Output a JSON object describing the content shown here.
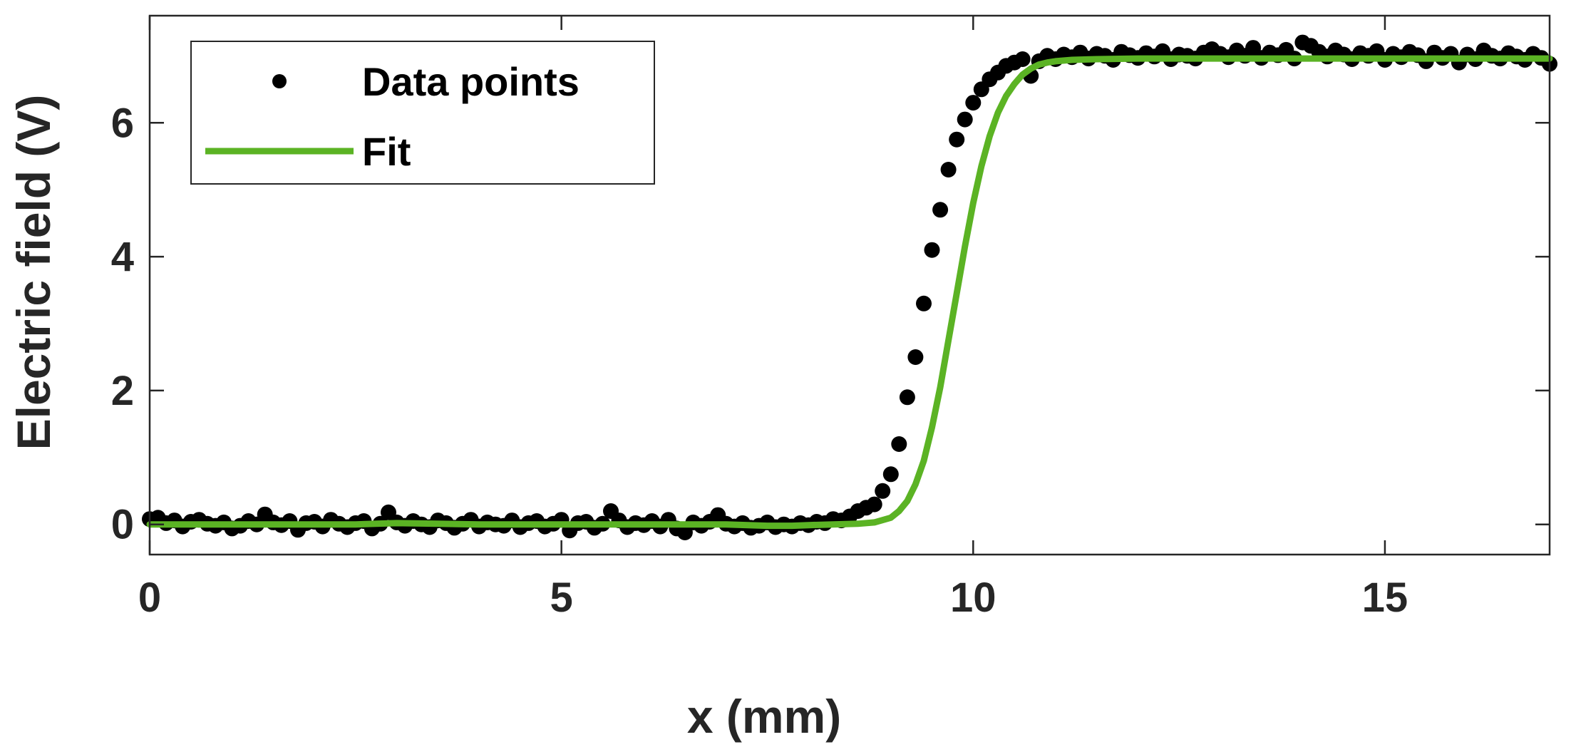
{
  "chart_data": {
    "type": "scatter",
    "xlabel": "x (mm)",
    "ylabel": "Electric field (V)",
    "xlim": [
      0,
      17
    ],
    "ylim": [
      -0.45,
      7.6
    ],
    "x_ticks": [
      0,
      5,
      10,
      15
    ],
    "x_tick_labels": [
      "0",
      "5",
      "10",
      "15"
    ],
    "y_ticks": [
      0,
      2,
      4,
      6
    ],
    "y_tick_labels": [
      "0",
      "2",
      "4",
      "6"
    ],
    "grid": false,
    "legend_position": "top-left",
    "colors": {
      "data": "#000000",
      "fit": "#5bb324",
      "axis": "#262626"
    },
    "series": [
      {
        "name": "Data points",
        "style": "markers",
        "x": [
          0.0,
          0.1,
          0.2,
          0.3,
          0.4,
          0.5,
          0.6,
          0.7,
          0.8,
          0.9,
          1.0,
          1.1,
          1.2,
          1.3,
          1.4,
          1.5,
          1.6,
          1.7,
          1.8,
          1.9,
          2.0,
          2.1,
          2.2,
          2.3,
          2.4,
          2.5,
          2.6,
          2.7,
          2.8,
          2.9,
          3.0,
          3.1,
          3.2,
          3.3,
          3.4,
          3.5,
          3.6,
          3.7,
          3.8,
          3.9,
          4.0,
          4.1,
          4.2,
          4.3,
          4.4,
          4.5,
          4.6,
          4.7,
          4.8,
          4.9,
          5.0,
          5.1,
          5.2,
          5.3,
          5.4,
          5.5,
          5.6,
          5.7,
          5.8,
          5.9,
          6.0,
          6.1,
          6.2,
          6.3,
          6.4,
          6.5,
          6.6,
          6.7,
          6.8,
          6.9,
          7.0,
          7.1,
          7.2,
          7.3,
          7.4,
          7.5,
          7.6,
          7.7,
          7.8,
          7.9,
          8.0,
          8.1,
          8.2,
          8.3,
          8.4,
          8.5,
          8.6,
          8.7,
          8.8,
          8.9,
          9.0,
          9.1,
          9.2,
          9.3,
          9.4,
          9.5,
          9.6,
          9.7,
          9.8,
          9.9,
          10.0,
          10.1,
          10.2,
          10.3,
          10.4,
          10.5,
          10.6,
          10.7,
          10.8,
          10.9,
          11.0,
          11.1,
          11.2,
          11.3,
          11.4,
          11.5,
          11.6,
          11.7,
          11.8,
          11.9,
          12.0,
          12.1,
          12.2,
          12.3,
          12.4,
          12.5,
          12.6,
          12.7,
          12.8,
          12.9,
          13.0,
          13.1,
          13.2,
          13.3,
          13.4,
          13.5,
          13.6,
          13.7,
          13.8,
          13.9,
          14.0,
          14.1,
          14.2,
          14.3,
          14.4,
          14.5,
          14.6,
          14.7,
          14.8,
          14.9,
          15.0,
          15.1,
          15.2,
          15.3,
          15.4,
          15.5,
          15.6,
          15.7,
          15.8,
          15.9,
          16.0,
          16.1,
          16.2,
          16.3,
          16.4,
          16.5,
          16.6,
          16.7,
          16.8,
          16.9,
          17.0
        ],
        "y": [
          0.08,
          0.1,
          0.02,
          0.06,
          -0.03,
          0.04,
          0.07,
          0.01,
          -0.02,
          0.03,
          -0.06,
          -0.02,
          0.05,
          0.0,
          0.15,
          0.03,
          -0.01,
          0.05,
          -0.08,
          0.02,
          0.04,
          -0.03,
          0.07,
          0.01,
          -0.04,
          0.02,
          0.05,
          -0.06,
          0.01,
          0.18,
          0.03,
          -0.02,
          0.05,
          0.0,
          -0.04,
          0.06,
          0.02,
          -0.05,
          0.01,
          0.07,
          -0.03,
          0.03,
          0.0,
          -0.02,
          0.06,
          -0.04,
          0.02,
          0.05,
          -0.03,
          0.01,
          0.07,
          -0.09,
          0.02,
          0.04,
          -0.05,
          0.01,
          0.2,
          0.06,
          -0.04,
          0.02,
          -0.01,
          0.05,
          -0.03,
          0.07,
          -0.06,
          -0.12,
          0.03,
          -0.02,
          0.04,
          0.14,
          0.01,
          -0.03,
          0.02,
          -0.05,
          -0.02,
          0.03,
          -0.04,
          0.0,
          -0.03,
          0.02,
          -0.01,
          0.04,
          0.02,
          0.08,
          0.06,
          0.12,
          0.2,
          0.25,
          0.3,
          0.5,
          0.75,
          1.2,
          1.9,
          2.5,
          3.3,
          4.1,
          4.7,
          5.3,
          5.75,
          6.05,
          6.3,
          6.5,
          6.65,
          6.75,
          6.85,
          6.9,
          6.95,
          6.7,
          6.92,
          7.0,
          6.95,
          7.02,
          6.98,
          7.05,
          6.96,
          7.03,
          7.0,
          6.94,
          7.06,
          7.01,
          6.97,
          7.04,
          6.99,
          7.07,
          6.95,
          7.02,
          7.0,
          6.96,
          7.05,
          7.1,
          7.03,
          6.98,
          7.08,
          7.0,
          7.12,
          6.97,
          7.05,
          7.01,
          7.09,
          6.96,
          7.2,
          7.15,
          7.06,
          6.99,
          7.08,
          7.02,
          6.95,
          7.04,
          7.0,
          7.07,
          6.94,
          7.03,
          6.98,
          7.06,
          7.01,
          6.92,
          7.05,
          6.97,
          7.03,
          6.9,
          7.02,
          6.95,
          7.08,
          7.0,
          6.96,
          7.04,
          6.99,
          6.94,
          7.03,
          6.97,
          6.88
        ]
      },
      {
        "name": "Fit",
        "style": "line",
        "x": [
          0.0,
          0.5,
          1.0,
          1.5,
          2.0,
          2.5,
          3.0,
          3.5,
          4.0,
          4.5,
          5.0,
          5.5,
          6.0,
          6.5,
          7.0,
          7.5,
          7.8,
          8.0,
          8.3,
          8.6,
          8.8,
          9.0,
          9.1,
          9.2,
          9.3,
          9.4,
          9.5,
          9.6,
          9.7,
          9.8,
          9.9,
          10.0,
          10.1,
          10.2,
          10.3,
          10.4,
          10.5,
          10.6,
          10.7,
          10.8,
          10.9,
          11.0,
          11.2,
          11.5,
          12.0,
          13.0,
          14.0,
          15.0,
          16.0,
          17.0
        ],
        "y": [
          0.0,
          0.0,
          0.0,
          0.0,
          0.0,
          0.0,
          0.02,
          0.01,
          0.0,
          0.0,
          0.0,
          0.0,
          0.0,
          0.0,
          0.0,
          -0.02,
          -0.02,
          -0.01,
          0.0,
          0.01,
          0.03,
          0.1,
          0.2,
          0.35,
          0.6,
          0.95,
          1.45,
          2.05,
          2.75,
          3.45,
          4.15,
          4.8,
          5.35,
          5.8,
          6.15,
          6.4,
          6.58,
          6.72,
          6.81,
          6.87,
          6.9,
          6.92,
          6.94,
          6.95,
          6.96,
          6.96,
          6.96,
          6.96,
          6.96,
          6.96
        ]
      }
    ]
  }
}
